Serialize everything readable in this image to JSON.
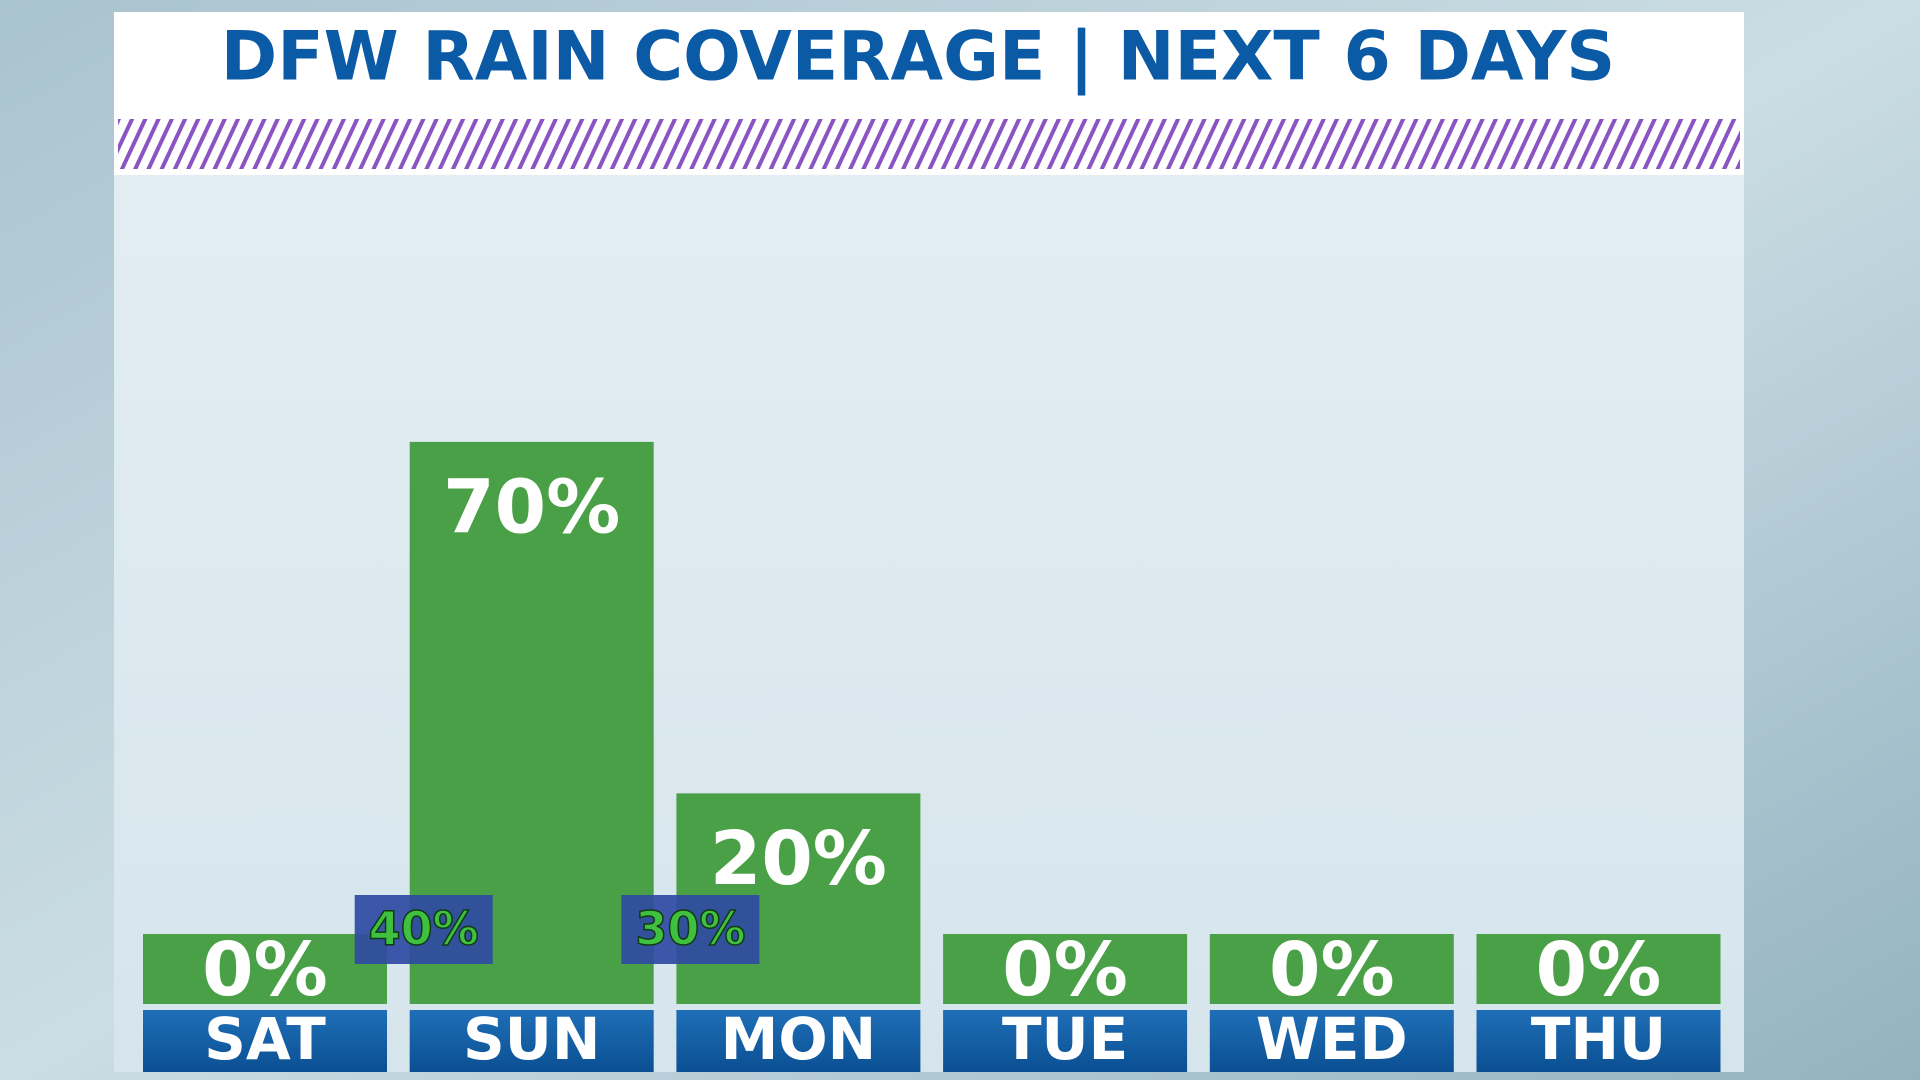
{
  "chart_data": {
    "type": "bar",
    "title": "DFW RAIN COVERAGE | NEXT 6 DAYS",
    "categories": [
      "SAT",
      "SUN",
      "MON",
      "TUE",
      "WED",
      "THU"
    ],
    "values": [
      0,
      70,
      20,
      0,
      0,
      0
    ],
    "value_labels": [
      "0%",
      "70%",
      "20%",
      "0%",
      "0%",
      "0%"
    ],
    "color": "#4aa047",
    "between_values": [
      40,
      30
    ],
    "between_labels": [
      "40%",
      "30%"
    ]
  }
}
